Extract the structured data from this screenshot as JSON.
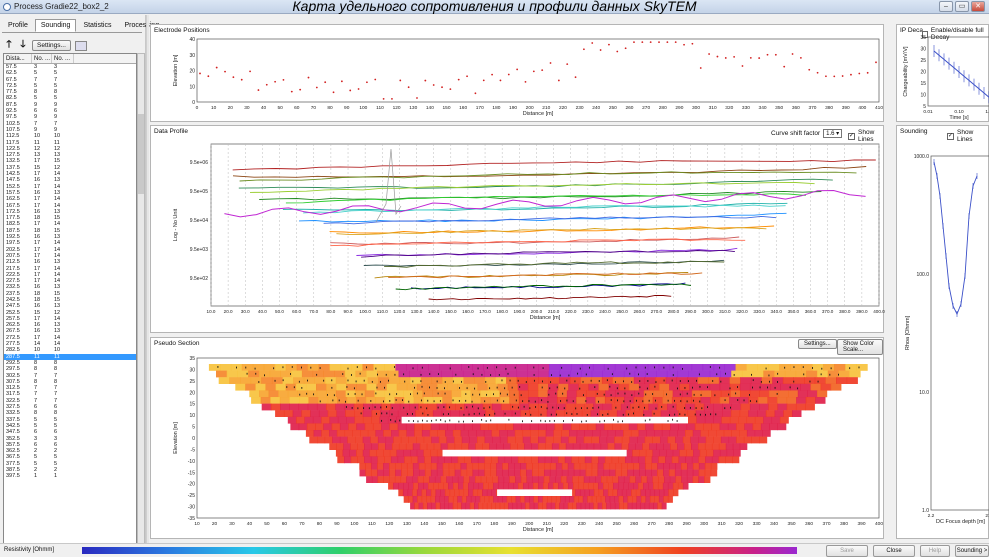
{
  "window": {
    "title": "Process Gradie22_box2_2",
    "caption": "Карта удельного сопротивления и профили данных SkyTEM",
    "buttons": [
      "–",
      "▭",
      "✕"
    ]
  },
  "left_panel": {
    "tabs": [
      "Profile",
      "Sounding",
      "Statistics",
      "Processing"
    ],
    "active_tab": "Sounding",
    "settings_button": "Settings...",
    "grid_headers": [
      "Dista...",
      "No. ...",
      "No. ..."
    ],
    "rows": [
      [
        "57.5",
        "3",
        "3"
      ],
      [
        "62.5",
        "5",
        "5"
      ],
      [
        "67.5",
        "7",
        "7"
      ],
      [
        "72.5",
        "5",
        "5"
      ],
      [
        "77.5",
        "8",
        "8"
      ],
      [
        "82.5",
        "5",
        "5"
      ],
      [
        "87.5",
        "9",
        "9"
      ],
      [
        "92.5",
        "6",
        "6"
      ],
      [
        "97.5",
        "9",
        "9"
      ],
      [
        "102.5",
        "7",
        "7"
      ],
      [
        "107.5",
        "9",
        "9"
      ],
      [
        "112.5",
        "10",
        "10"
      ],
      [
        "117.5",
        "11",
        "11"
      ],
      [
        "122.5",
        "12",
        "12"
      ],
      [
        "127.5",
        "13",
        "13"
      ],
      [
        "132.5",
        "17",
        "15"
      ],
      [
        "137.5",
        "15",
        "12"
      ],
      [
        "142.5",
        "17",
        "14"
      ],
      [
        "147.5",
        "16",
        "13"
      ],
      [
        "152.5",
        "17",
        "14"
      ],
      [
        "157.5",
        "16",
        "13"
      ],
      [
        "162.5",
        "17",
        "14"
      ],
      [
        "167.5",
        "17",
        "14"
      ],
      [
        "172.5",
        "16",
        "13"
      ],
      [
        "177.5",
        "18",
        "15"
      ],
      [
        "182.5",
        "17",
        "14"
      ],
      [
        "187.5",
        "18",
        "15"
      ],
      [
        "192.5",
        "16",
        "13"
      ],
      [
        "197.5",
        "17",
        "14"
      ],
      [
        "202.5",
        "17",
        "14"
      ],
      [
        "207.5",
        "17",
        "14"
      ],
      [
        "212.5",
        "16",
        "13"
      ],
      [
        "217.5",
        "17",
        "14"
      ],
      [
        "222.5",
        "17",
        "14"
      ],
      [
        "227.5",
        "17",
        "14"
      ],
      [
        "232.5",
        "16",
        "13"
      ],
      [
        "237.5",
        "18",
        "15"
      ],
      [
        "242.5",
        "18",
        "15"
      ],
      [
        "247.5",
        "16",
        "13"
      ],
      [
        "252.5",
        "15",
        "12"
      ],
      [
        "257.5",
        "17",
        "14"
      ],
      [
        "262.5",
        "16",
        "13"
      ],
      [
        "267.5",
        "16",
        "13"
      ],
      [
        "272.5",
        "17",
        "14"
      ],
      [
        "277.5",
        "14",
        "14"
      ],
      [
        "282.5",
        "10",
        "10"
      ],
      [
        "287.5",
        "11",
        "11"
      ],
      [
        "292.5",
        "8",
        "8"
      ],
      [
        "297.5",
        "8",
        "8"
      ],
      [
        "302.5",
        "7",
        "7"
      ],
      [
        "307.5",
        "8",
        "8"
      ],
      [
        "312.5",
        "7",
        "7"
      ],
      [
        "317.5",
        "7",
        "7"
      ],
      [
        "322.5",
        "7",
        "7"
      ],
      [
        "327.5",
        "6",
        "6"
      ],
      [
        "332.5",
        "8",
        "8"
      ],
      [
        "337.5",
        "5",
        "5"
      ],
      [
        "342.5",
        "5",
        "5"
      ],
      [
        "347.5",
        "6",
        "6"
      ],
      [
        "352.5",
        "3",
        "3"
      ],
      [
        "357.5",
        "6",
        "6"
      ],
      [
        "362.5",
        "2",
        "2"
      ],
      [
        "367.5",
        "5",
        "5"
      ],
      [
        "377.5",
        "5",
        "5"
      ],
      [
        "387.5",
        "2",
        "2"
      ],
      [
        "397.5",
        "1",
        "1"
      ]
    ],
    "selected_row": "287.5"
  },
  "electrode_panel": {
    "title": "Electrode Positions",
    "ylabel": "Elevation [m]",
    "xlabel": "Distance [m]",
    "yticks": [
      "40",
      "30",
      "20",
      "10",
      "0"
    ],
    "xticks": [
      "0",
      "10",
      "20",
      "30",
      "40",
      "50",
      "60",
      "70",
      "80",
      "90",
      "100",
      "110",
      "120",
      "130",
      "140",
      "150",
      "160",
      "170",
      "180",
      "190",
      "200",
      "210",
      "220",
      "230",
      "240",
      "250",
      "260",
      "270",
      "280",
      "290",
      "300",
      "310",
      "320",
      "330",
      "340",
      "350",
      "360",
      "370",
      "380",
      "390",
      "400",
      "410"
    ]
  },
  "data_profile": {
    "title": "Data Profile",
    "curve_shift_label": "Curve shift factor",
    "curve_shift_value": "1.6",
    "show_lines_label": "Show Lines",
    "ylabel": "Log - No Unit",
    "xlabel": "Distance [m]",
    "yticks": [
      "9.5e+06",
      "9.5e+05",
      "9.5e+04",
      "9.5e+03",
      "9.5e+02"
    ],
    "xticks": [
      "10.0",
      "20.0",
      "30.0",
      "40.0",
      "50.0",
      "60.0",
      "70.0",
      "80.0",
      "90.0",
      "100.0",
      "110.0",
      "120.0",
      "130.0",
      "140.0",
      "150.0",
      "160.0",
      "170.0",
      "180.0",
      "190.0",
      "200.0",
      "210.0",
      "220.0",
      "230.0",
      "240.0",
      "250.0",
      "260.0",
      "270.0",
      "280.0",
      "290.0",
      "300.0",
      "310.0",
      "320.0",
      "330.0",
      "340.0",
      "350.0",
      "360.0",
      "370.0",
      "380.0",
      "390.0",
      "400.0"
    ]
  },
  "pseudo_section": {
    "title": "Pseudo Section",
    "settings_button": "Settings...",
    "color_scale_button": "Show Color Scale...",
    "ylabel": "Elevation [m]",
    "xlabel": "Distance [m]",
    "yticks": [
      "35",
      "30",
      "25",
      "20",
      "15",
      "10",
      "5",
      "0",
      "-5",
      "-10",
      "-15",
      "-20",
      "-25",
      "-30",
      "-35"
    ],
    "xticks": [
      "10",
      "20",
      "30",
      "40",
      "50",
      "60",
      "70",
      "80",
      "90",
      "100",
      "110",
      "120",
      "130",
      "140",
      "150",
      "160",
      "170",
      "180",
      "190",
      "200",
      "210",
      "220",
      "230",
      "240",
      "250",
      "260",
      "270",
      "280",
      "290",
      "300",
      "310",
      "320",
      "330",
      "340",
      "350",
      "360",
      "370",
      "380",
      "390",
      "400"
    ]
  },
  "ip_panel": {
    "title": "IP Deca",
    "enable_label": "Enable/disable full Decay",
    "ylabel": "Chargeability [mV/V]",
    "xlabel": "Time [s]",
    "yticks": [
      "35",
      "30",
      "25",
      "20",
      "15",
      "10",
      "5"
    ],
    "xticks": [
      "0.01",
      "0.10",
      "1.00"
    ]
  },
  "sounding_panel": {
    "title": "Sounding",
    "show_lines_label": "Show Lines",
    "ylabel": "Rhoa [Ohmm]",
    "xlabel": "DC Focus depth [m]",
    "yticks": [
      "1000.0",
      "100.0",
      "10.0",
      "1.0"
    ],
    "xticks": [
      "2.2",
      "21.7"
    ]
  },
  "bottom": {
    "resistivity_label": "Resistivity [Ohmm]",
    "buttons": [
      "Save",
      "Close",
      "Help",
      "Sounding >"
    ]
  },
  "colors": {
    "accent_select": "#3399ff",
    "line_magenta": "#c026d3",
    "line_red": "#d22020"
  }
}
